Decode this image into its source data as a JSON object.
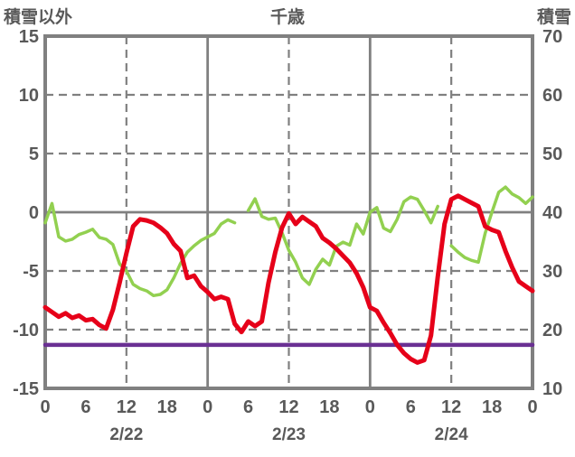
{
  "header": {
    "left_axis_title": "積雪以外",
    "chart_title": "千歳",
    "right_axis_title": "積雪"
  },
  "colors": {
    "red_series": "#e60019",
    "green_series": "#92d050",
    "purple_reference": "#6a3093",
    "grid": "#808080",
    "text": "#595959"
  },
  "chart_data": {
    "type": "line",
    "title": "千歳",
    "left_axis": {
      "title": "積雪以外",
      "min": -15,
      "max": 15,
      "tick_labels": [
        15,
        10,
        5,
        0,
        -5,
        -10,
        -15
      ]
    },
    "right_axis": {
      "title": "積雪",
      "min": 10,
      "max": 70,
      "tick_labels": [
        70,
        60,
        50,
        40,
        30,
        20,
        10
      ]
    },
    "x_axis": {
      "start_hour": 0,
      "end_hour": 72,
      "point_step_hours": 1,
      "tick_hours": [
        0,
        6,
        12,
        18,
        24,
        30,
        36,
        42,
        48,
        54,
        60,
        66,
        72
      ],
      "tick_labels": [
        "0",
        "6",
        "12",
        "18",
        "0",
        "6",
        "12",
        "18",
        "0",
        "6",
        "12",
        "18",
        "0"
      ],
      "date_labels": [
        {
          "text": "2/22",
          "at_hour": 12
        },
        {
          "text": "2/23",
          "at_hour": 36
        },
        {
          "text": "2/24",
          "at_hour": 60
        }
      ]
    },
    "gridlines": {
      "horizontal_dashed_left_values": [
        10,
        5,
        -5,
        -10
      ],
      "horizontal_solid_left_values": [
        0
      ],
      "vertical_dashed_hours": [
        12,
        36,
        60
      ],
      "vertical_solid_hours": [
        24,
        48
      ]
    },
    "series": [
      {
        "name": "積雪以外 (red line, left axis)",
        "axis": "left",
        "color_key": "red_series",
        "stroke_width": 5,
        "values": [
          -8.1,
          -8.5,
          -8.9,
          -8.6,
          -9.0,
          -8.8,
          -9.2,
          -9.1,
          -9.6,
          -9.9,
          -8.3,
          -6.0,
          -3.5,
          -1.2,
          -0.6,
          -0.7,
          -0.9,
          -1.3,
          -1.8,
          -2.7,
          -3.3,
          -5.6,
          -5.4,
          -6.3,
          -6.8,
          -7.4,
          -7.2,
          -7.4,
          -9.5,
          -10.2,
          -9.3,
          -9.7,
          -9.3,
          -6.0,
          -3.4,
          -1.3,
          -0.1,
          -1.0,
          -0.4,
          -0.8,
          -1.2,
          -2.2,
          -2.6,
          -3.1,
          -3.7,
          -4.3,
          -5.2,
          -6.4,
          -8.1,
          -8.4,
          -9.4,
          -10.3,
          -11.3,
          -12.0,
          -12.5,
          -12.8,
          -12.6,
          -10.5,
          -5.5,
          -1.0,
          1.1,
          1.4,
          1.1,
          0.8,
          0.5,
          -1.2,
          -1.5,
          -1.7,
          -3.3,
          -4.7,
          -5.9,
          -6.3,
          -6.7
        ]
      },
      {
        "name": "積雪 (green line, right axis, gaps = missing data)",
        "axis": "right",
        "color_key": "green_series",
        "stroke_width": 3.5,
        "values": [
          38.2,
          41.5,
          35.8,
          35.1,
          35.4,
          36.2,
          36.6,
          37.1,
          35.7,
          35.4,
          34.5,
          31.2,
          30.0,
          27.7,
          27.0,
          26.6,
          25.8,
          26.0,
          26.8,
          28.8,
          31.3,
          33.2,
          34.3,
          35.2,
          35.8,
          36.4,
          38.0,
          38.7,
          38.2,
          null,
          40.3,
          42.3,
          39.3,
          38.8,
          39.0,
          36.5,
          33.5,
          31.5,
          28.8,
          27.7,
          30.3,
          32.0,
          31.0,
          34.2,
          34.9,
          34.4,
          38.0,
          36.3,
          40.0,
          40.8,
          37.3,
          36.7,
          38.8,
          41.8,
          42.6,
          42.2,
          40.3,
          38.2,
          41.0,
          null,
          34.3,
          33.2,
          32.3,
          31.8,
          31.5,
          36.4,
          40.0,
          43.4,
          44.3,
          43.1,
          42.5,
          41.5,
          42.6
        ]
      },
      {
        "name": "purple constant reference line (left axis)",
        "axis": "left",
        "color_key": "purple_reference",
        "stroke_width": 4.5,
        "constant_value": -11.3
      }
    ]
  }
}
